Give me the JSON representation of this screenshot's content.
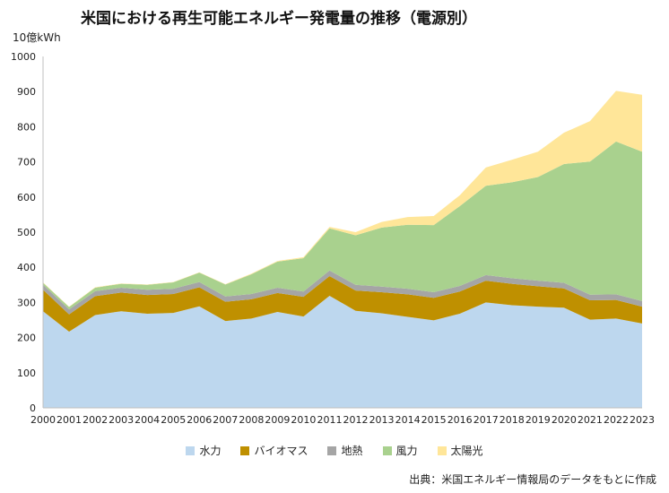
{
  "title": "米国における再生可能エネルギー発電量の推移（電源別）",
  "unit_label": "10億kWh",
  "source": "出典：米国エネルギー情報局のデータをもとに作成",
  "colors": {
    "hydro": "#bdd7ee",
    "biomass": "#bf9000",
    "geothermal": "#a5a5a5",
    "wind": "#a9d18e",
    "solar": "#ffe699"
  },
  "chart_data": {
    "type": "area",
    "stacked": true,
    "title": "米国における再生可能エネルギー発電量の推移（電源別）",
    "ylabel": "10億kWh",
    "ylim": [
      0,
      1000
    ],
    "yticks": [
      0,
      100,
      200,
      300,
      400,
      500,
      600,
      700,
      800,
      900,
      1000
    ],
    "grid": false,
    "legend_position": "bottom",
    "x": [
      2000,
      2001,
      2002,
      2003,
      2004,
      2005,
      2006,
      2007,
      2008,
      2009,
      2010,
      2011,
      2012,
      2013,
      2014,
      2015,
      2016,
      2017,
      2018,
      2019,
      2020,
      2021,
      2022,
      2023
    ],
    "series": [
      {
        "name": "水力",
        "color_key": "hydro",
        "values": [
          275,
          217,
          264,
          275,
          268,
          270,
          289,
          247,
          254,
          273,
          260,
          319,
          276,
          269,
          259,
          249,
          268,
          300,
          292,
          288,
          285,
          251,
          254,
          240
        ]
      },
      {
        "name": "バイオマス",
        "color_key": "biomass",
        "values": [
          61,
          49,
          54,
          53,
          53,
          54,
          54,
          55,
          55,
          54,
          56,
          56,
          58,
          60,
          64,
          64,
          63,
          62,
          61,
          58,
          55,
          55,
          53,
          48
        ]
      },
      {
        "name": "地熱",
        "color_key": "geothermal",
        "values": [
          14,
          14,
          14,
          14,
          15,
          15,
          15,
          15,
          15,
          15,
          15,
          16,
          16,
          16,
          16,
          16,
          16,
          16,
          16,
          16,
          16,
          16,
          16,
          16
        ]
      },
      {
        "name": "風力",
        "color_key": "wind",
        "values": [
          6,
          7,
          10,
          11,
          14,
          18,
          27,
          34,
          56,
          74,
          95,
          120,
          141,
          168,
          182,
          191,
          227,
          254,
          273,
          295,
          338,
          379,
          435,
          425
        ]
      },
      {
        "name": "太陽光",
        "color_key": "solar",
        "values": [
          1,
          1,
          1,
          1,
          1,
          1,
          1,
          1,
          2,
          2,
          3,
          4,
          9,
          16,
          22,
          26,
          31,
          52,
          64,
          72,
          89,
          115,
          144,
          162
        ]
      }
    ]
  }
}
